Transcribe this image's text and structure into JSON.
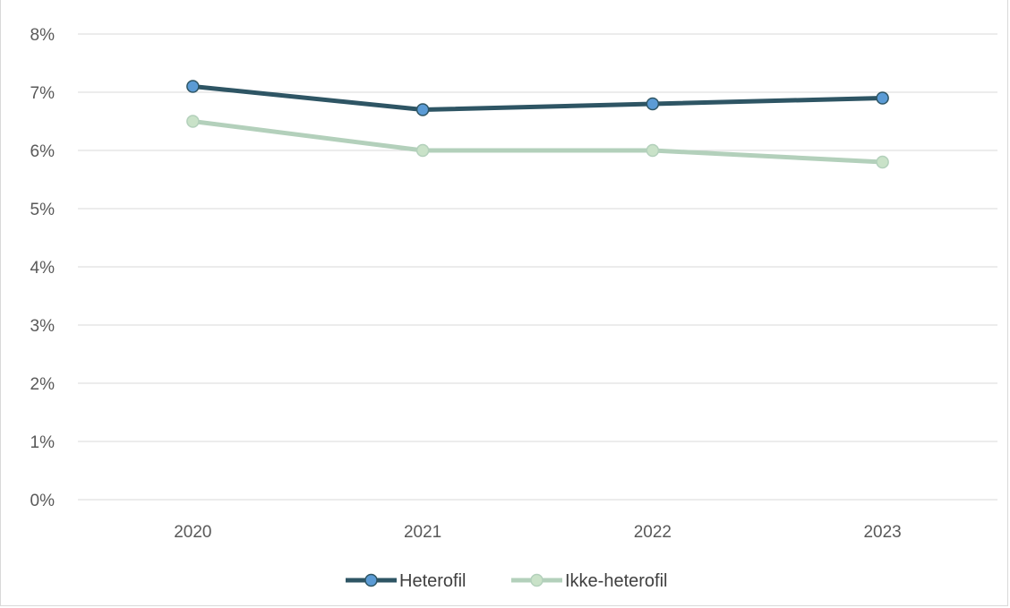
{
  "chart_data": {
    "type": "line",
    "categories": [
      "2020",
      "2021",
      "2022",
      "2023"
    ],
    "series": [
      {
        "name": "Heterofil",
        "values": [
          7.1,
          6.7,
          6.8,
          6.9
        ],
        "color": "#2e5564",
        "marker_color": "#5b9bd5"
      },
      {
        "name": "Ikke-heterofil",
        "values": [
          6.5,
          6.0,
          6.0,
          5.8
        ],
        "color": "#b3d0bb",
        "marker_color": "#c9e2c8"
      }
    ],
    "y_ticks": [
      "0%",
      "1%",
      "2%",
      "3%",
      "4%",
      "5%",
      "6%",
      "7%",
      "8%"
    ],
    "ylim": [
      0,
      8
    ],
    "y_unit": "%",
    "grid": true,
    "legend_position": "bottom",
    "title": "",
    "xlabel": "",
    "ylabel": ""
  }
}
